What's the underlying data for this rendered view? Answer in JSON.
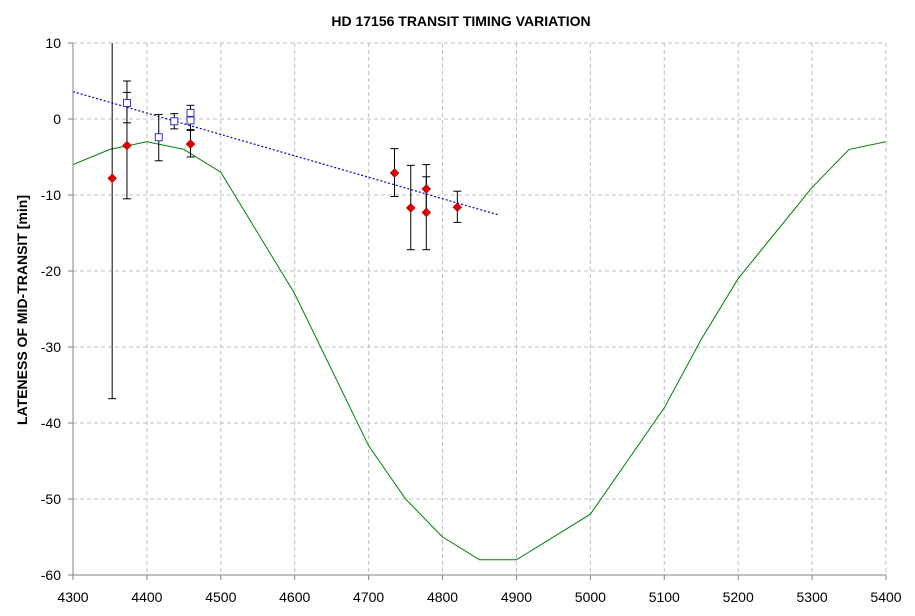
{
  "chart_data": {
    "type": "scatter",
    "title": "HD 17156 TRANSIT TIMING VARIATION",
    "xlabel": "",
    "ylabel": "LATENESS OF MID-TRANSIT [min]",
    "xlim": [
      4300,
      5400
    ],
    "ylim": [
      -60,
      10
    ],
    "x_ticks": [
      4300,
      4400,
      4500,
      4600,
      4700,
      4800,
      4900,
      5000,
      5100,
      5200,
      5300,
      5400
    ],
    "y_ticks": [
      10,
      0,
      -10,
      -20,
      -30,
      -40,
      -50,
      -60
    ],
    "grid": true,
    "colors": {
      "red_points": "#e00000",
      "blue_points": "#3333cc",
      "trend_line": "#0000cc",
      "model_curve": "#008000",
      "grid": "#bfbfbf"
    },
    "series": [
      {
        "marker": "diamond-filled",
        "points": [
          {
            "x": 4353,
            "y": -7.8,
            "err_low": -36.8,
            "err_high": 10.5
          },
          {
            "x": 4373,
            "y": -3.5,
            "err_low": -10.5,
            "err_high": 3.5
          },
          {
            "x": 4459,
            "y": -3.3,
            "err_low": -5.0,
            "err_high": -1.5
          },
          {
            "x": 4735,
            "y": -7.1,
            "err_low": -10.2,
            "err_high": -3.9
          },
          {
            "x": 4757,
            "y": -11.7,
            "err_low": -17.2,
            "err_high": -6.1
          },
          {
            "x": 4778,
            "y": -9.2,
            "err_low": -12.3,
            "err_high": -6.0
          },
          {
            "x": 4778,
            "y": -12.3,
            "err_low": -17.2,
            "err_high": -7.6
          },
          {
            "x": 4820,
            "y": -11.6,
            "err_low": -13.6,
            "err_high": -9.5
          }
        ]
      },
      {
        "marker": "square-open",
        "points": [
          {
            "x": 4373,
            "y": 2.1,
            "err_low": -0.5,
            "err_high": 5.0
          },
          {
            "x": 4416,
            "y": -2.4,
            "err_low": -5.5,
            "err_high": 0.6
          },
          {
            "x": 4437,
            "y": -0.3,
            "err_low": -1.3,
            "err_high": 0.7
          },
          {
            "x": 4459,
            "y": 0.8,
            "err_low": -0.4,
            "err_high": 1.8
          },
          {
            "x": 4459,
            "y": -0.2,
            "err_low": -1.4,
            "err_high": 1.0
          }
        ]
      },
      {
        "style": "dotted-line",
        "x": [
          4300,
          4875
        ],
        "y": [
          3.6,
          -12.6
        ]
      },
      {
        "style": "solid-line",
        "x": [
          4300,
          4350,
          4400,
          4450,
          4500,
          4600,
          4700,
          4750,
          4800,
          4850,
          4900,
          5000,
          5100,
          5150,
          5200,
          5250,
          5300,
          5350,
          5400
        ],
        "y": [
          -6,
          -4,
          -3,
          -4,
          -7,
          -23,
          -43,
          -50,
          -55,
          -58,
          -58,
          -52,
          -38,
          -29,
          -21,
          -15,
          -9,
          -4,
          -3
        ]
      }
    ]
  }
}
